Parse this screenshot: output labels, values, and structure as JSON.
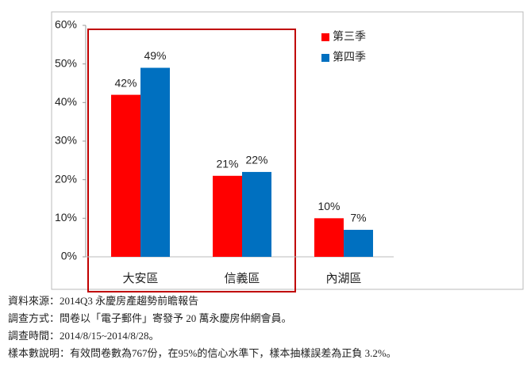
{
  "chart_data": {
    "type": "bar",
    "categories": [
      "大安區",
      "信義區",
      "內湖區"
    ],
    "series": [
      {
        "name": "第三季",
        "color": "#ff0000",
        "values": [
          42,
          21,
          10
        ],
        "value_labels": [
          "42%",
          "21%",
          "10%"
        ]
      },
      {
        "name": "第四季",
        "color": "#0070c0",
        "values": [
          49,
          22,
          7
        ],
        "value_labels": [
          "49%",
          "22%",
          "7%"
        ]
      }
    ],
    "ylim": [
      0,
      60
    ],
    "yticks": [
      {
        "value": 0,
        "label": "0%"
      },
      {
        "value": 10,
        "label": "10%"
      },
      {
        "value": 20,
        "label": "20%"
      },
      {
        "value": 30,
        "label": "30%"
      },
      {
        "value": 40,
        "label": "40%"
      },
      {
        "value": 50,
        "label": "50%"
      },
      {
        "value": 60,
        "label": "60%"
      }
    ],
    "legend": "top-right",
    "annotations": [
      "資料來源：2014Q3 永慶房產趨勢前瞻報告",
      "調查方式：問卷以「電子郵件」寄發予 20 萬永慶房仲網會員。",
      "調查時間：2014/8/15~2014/8/28。",
      "樣本數說明：有效問卷數為767份，在95%的信心水準下，樣本抽樣誤差為正負 3.2%。"
    ]
  }
}
